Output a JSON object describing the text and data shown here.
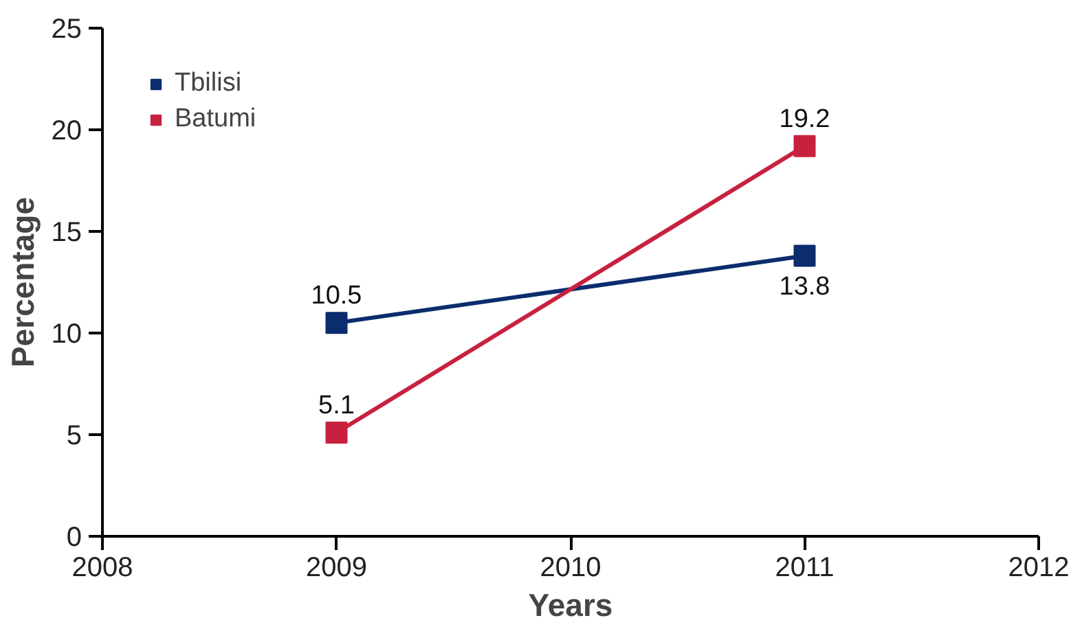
{
  "chart_data": {
    "type": "line",
    "xlabel": "Years",
    "ylabel": "Percentage",
    "x": [
      2009,
      2011
    ],
    "series": [
      {
        "name": "Tbilisi",
        "color": "#0b2d6e",
        "values": [
          10.5,
          13.8
        ]
      },
      {
        "name": "Batumi",
        "color": "#c8213f",
        "values": [
          5.1,
          19.2
        ]
      }
    ],
    "xlim": [
      2008,
      2012
    ],
    "xticks": [
      2008,
      2009,
      2010,
      2011,
      2012
    ],
    "ylim": [
      0,
      25
    ],
    "yticks": [
      0,
      5,
      10,
      15,
      20,
      25
    ],
    "grid": false,
    "legend": "top left",
    "marker": "square",
    "line_style": "solid",
    "data_labels": true
  }
}
